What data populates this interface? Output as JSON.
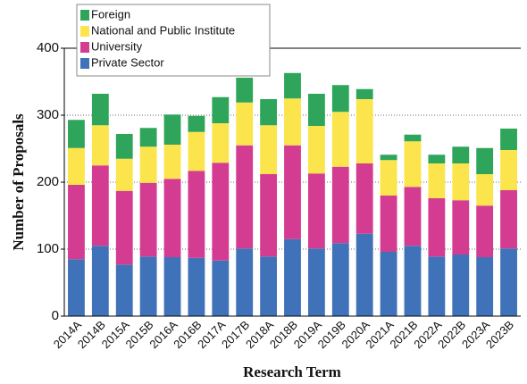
{
  "chart_data": {
    "type": "stacked_bar",
    "x_label": "Research Term",
    "y_label": "Number of Proposals",
    "categories": [
      "2014A",
      "2014B",
      "2015A",
      "2015B",
      "2016A",
      "2016B",
      "2017A",
      "2017B",
      "2018A",
      "2018B",
      "2019A",
      "2019B",
      "2020A",
      "2021A",
      "2021B",
      "2022A",
      "2022B",
      "2023A",
      "2023B"
    ],
    "series": [
      {
        "name": "Private Sector",
        "color": "#3f72b8",
        "values": [
          85,
          105,
          77,
          89,
          88,
          87,
          83,
          101,
          89,
          115,
          101,
          109,
          123,
          96,
          105,
          89,
          92,
          88,
          101
        ]
      },
      {
        "name": "University",
        "color": "#d43c92",
        "values": [
          111,
          120,
          110,
          110,
          117,
          130,
          146,
          154,
          123,
          140,
          112,
          114,
          105,
          84,
          88,
          87,
          81,
          77,
          87
        ]
      },
      {
        "name": "National and Public Institute",
        "color": "#fbe44c",
        "values": [
          55,
          60,
          48,
          54,
          51,
          58,
          59,
          64,
          73,
          70,
          71,
          82,
          96,
          53,
          68,
          52,
          55,
          47,
          60
        ]
      },
      {
        "name": "Foreign",
        "color": "#2ea55b",
        "values": [
          42,
          47,
          37,
          28,
          45,
          24,
          39,
          37,
          39,
          38,
          48,
          40,
          15,
          8,
          10,
          13,
          25,
          39,
          32
        ]
      }
    ],
    "ylim": [
      0,
      400
    ],
    "yticks": [
      0,
      100,
      200,
      300,
      400
    ],
    "grid": true
  }
}
